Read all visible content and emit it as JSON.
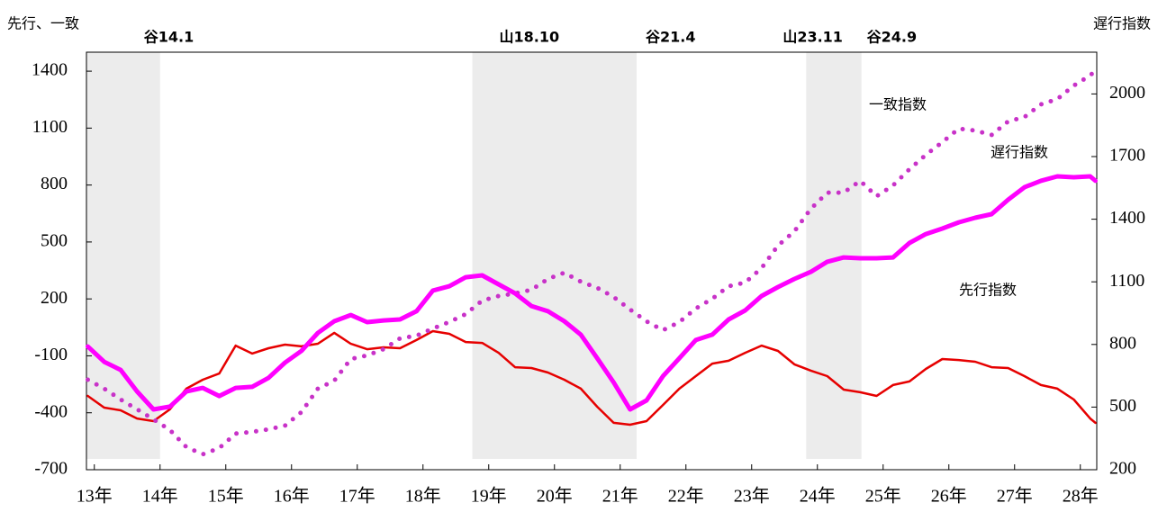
{
  "chart_data": {
    "type": "line",
    "y_label": "先行、一致",
    "y2_label": "遅行指数",
    "xlim": [
      12.88,
      28.25
    ],
    "xticks": [
      {
        "value": 13,
        "label": "13年"
      },
      {
        "value": 14,
        "label": "14年"
      },
      {
        "value": 15,
        "label": "15年"
      },
      {
        "value": 16,
        "label": "16年"
      },
      {
        "value": 17,
        "label": "17年"
      },
      {
        "value": 18,
        "label": "18年"
      },
      {
        "value": 19,
        "label": "19年"
      },
      {
        "value": 20,
        "label": "20年"
      },
      {
        "value": 21,
        "label": "21年"
      },
      {
        "value": 22,
        "label": "22年"
      },
      {
        "value": 23,
        "label": "23年"
      },
      {
        "value": 24,
        "label": "24年"
      },
      {
        "value": 25,
        "label": "25年"
      },
      {
        "value": 26,
        "label": "26年"
      },
      {
        "value": 27,
        "label": "27年"
      },
      {
        "value": 28,
        "label": "28年"
      }
    ],
    "ylim": [
      -700,
      1500
    ],
    "yticks": [
      -700,
      -400,
      -100,
      200,
      500,
      800,
      1100,
      1400
    ],
    "y2lim": [
      200,
      2200
    ],
    "y2ticks": [
      200,
      500,
      800,
      1100,
      1400,
      1700,
      2000
    ],
    "phases": [
      {
        "label": "谷14.1",
        "kind": "trough",
        "x": 14.0
      },
      {
        "label": "山18.10",
        "kind": "peak",
        "x": 18.75
      },
      {
        "label": "谷21.4",
        "kind": "trough",
        "x": 21.25
      },
      {
        "label": "山23.11",
        "kind": "peak",
        "x": 23.83
      },
      {
        "label": "谷24.9",
        "kind": "trough",
        "x": 24.67
      }
    ],
    "shade_color": "#ececec",
    "x": [
      12.9,
      13.15,
      13.4,
      13.65,
      13.9,
      14.15,
      14.4,
      14.65,
      14.9,
      15.15,
      15.4,
      15.65,
      15.9,
      16.15,
      16.4,
      16.65,
      16.9,
      17.15,
      17.4,
      17.65,
      17.9,
      18.15,
      18.4,
      18.65,
      18.9,
      19.15,
      19.4,
      19.65,
      19.9,
      20.15,
      20.4,
      20.65,
      20.9,
      21.15,
      21.4,
      21.65,
      21.9,
      22.15,
      22.4,
      22.65,
      22.9,
      23.15,
      23.4,
      23.65,
      23.9,
      24.15,
      24.4,
      24.65,
      24.9,
      25.15,
      25.4,
      25.65,
      25.9,
      26.15,
      26.4,
      26.65,
      26.9,
      27.15,
      27.4,
      27.65,
      27.9,
      28.15,
      28.23
    ],
    "series": [
      {
        "name": "先行指数",
        "color": "#e60000",
        "style": "solid",
        "width": 2.5,
        "values": [
          -311,
          -373,
          -387,
          -430,
          -444,
          -382,
          -273,
          -226,
          -193,
          -46,
          -88,
          -60,
          -41,
          -50,
          -36,
          21,
          -36,
          -65,
          -55,
          -60,
          -17,
          30,
          16,
          -27,
          -32,
          -84,
          -160,
          -164,
          -188,
          -226,
          -273,
          -368,
          -453,
          -463,
          -444,
          -359,
          -273,
          -207,
          -141,
          -126,
          -84,
          -46,
          -74,
          -145,
          -178,
          -207,
          -278,
          -292,
          -311,
          -254,
          -235,
          -169,
          -117,
          -122,
          -131,
          -160,
          -164,
          -207,
          -254,
          -273,
          -330,
          -430,
          -453
        ]
      },
      {
        "name": "一致指数",
        "color": "#c832c8",
        "style": "dotted",
        "width": 5,
        "values": [
          -226,
          -273,
          -330,
          -382,
          -435,
          -491,
          -581,
          -619,
          -586,
          -510,
          -501,
          -487,
          -468,
          -397,
          -273,
          -231,
          -117,
          -98,
          -65,
          -8,
          6,
          44,
          78,
          120,
          191,
          215,
          229,
          248,
          305,
          338,
          291,
          258,
          210,
          144,
          82,
          35,
          78,
          149,
          201,
          267,
          286,
          362,
          481,
          556,
          675,
          760,
          760,
          822,
          741,
          798,
          883,
          959,
          1026,
          1097,
          1087,
          1064,
          1135,
          1158,
          1225,
          1253,
          1324,
          1377,
          1405
        ]
      },
      {
        "name": "遅行指数",
        "color": "#ff00ff",
        "style": "solid",
        "width": 5,
        "axis": "y2",
        "values": [
          790,
          717,
          678,
          575,
          489,
          502,
          575,
          592,
          553,
          592,
          597,
          640,
          713,
          769,
          855,
          911,
          941,
          907,
          915,
          920,
          959,
          1058,
          1079,
          1122,
          1131,
          1088,
          1045,
          984,
          959,
          911,
          847,
          734,
          618,
          489,
          532,
          648,
          734,
          821,
          847,
          920,
          963,
          1032,
          1075,
          1114,
          1148,
          1196,
          1217,
          1213,
          1213,
          1217,
          1286,
          1329,
          1355,
          1385,
          1407,
          1424,
          1493,
          1553,
          1584,
          1605,
          1601,
          1605,
          1584
        ]
      }
    ]
  }
}
